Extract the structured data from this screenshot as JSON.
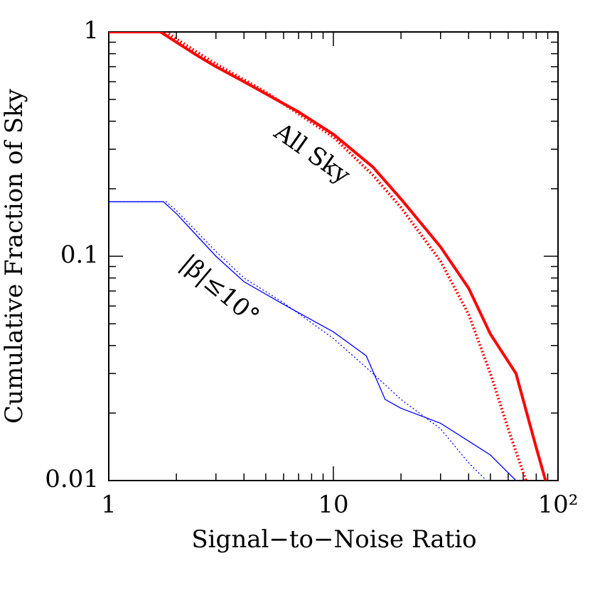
{
  "chart_data": {
    "type": "line",
    "xlabel": "Signal−to−Noise Ratio",
    "ylabel": "Cumulative Fraction of Sky",
    "xlog": true,
    "ylog": true,
    "xlim": [
      1,
      100
    ],
    "ylim": [
      0.01,
      1
    ],
    "xticks": [
      1,
      10,
      {
        "value": 100,
        "label": "10²"
      }
    ],
    "yticks": [
      0.01,
      0.1,
      1
    ],
    "annotations": [
      {
        "text": "All Sky",
        "color": "#000000"
      },
      {
        "text": "|β|≤10°",
        "color": "#0000ff"
      }
    ],
    "series": [
      {
        "color": "#ff0000",
        "style": "solid",
        "width": 4,
        "x": [
          1,
          1.7,
          2,
          2.5,
          3,
          4,
          5,
          7,
          10,
          15,
          20,
          30,
          40,
          50,
          65,
          80,
          88
        ],
        "values": [
          1,
          1,
          0.9,
          0.78,
          0.7,
          0.6,
          0.53,
          0.44,
          0.35,
          0.25,
          0.18,
          0.11,
          0.072,
          0.045,
          0.03,
          0.014,
          0.01
        ]
      },
      {
        "color": "#ff0000",
        "style": "dotted",
        "width": 4,
        "x": [
          1,
          1.8,
          2,
          3,
          5,
          10,
          15,
          20,
          30,
          40,
          50,
          60,
          72
        ],
        "values": [
          1,
          1,
          0.93,
          0.72,
          0.54,
          0.34,
          0.23,
          0.165,
          0.095,
          0.055,
          0.03,
          0.017,
          0.01
        ]
      },
      {
        "color": "#0000ff",
        "style": "solid",
        "width": 1.3,
        "x": [
          1,
          1.75,
          2,
          3,
          4,
          6,
          10,
          14,
          17,
          20,
          30,
          40,
          50,
          65
        ],
        "values": [
          0.175,
          0.175,
          0.155,
          0.1,
          0.077,
          0.061,
          0.046,
          0.036,
          0.023,
          0.021,
          0.018,
          0.015,
          0.013,
          0.01
        ]
      },
      {
        "color": "#0000ff",
        "style": "dotted",
        "width": 1.3,
        "x": [
          1,
          1.8,
          2,
          3,
          4,
          6,
          10,
          15,
          20,
          30,
          40,
          48
        ],
        "values": [
          0.175,
          0.175,
          0.16,
          0.105,
          0.08,
          0.062,
          0.043,
          0.03,
          0.023,
          0.017,
          0.012,
          0.01
        ]
      }
    ]
  }
}
